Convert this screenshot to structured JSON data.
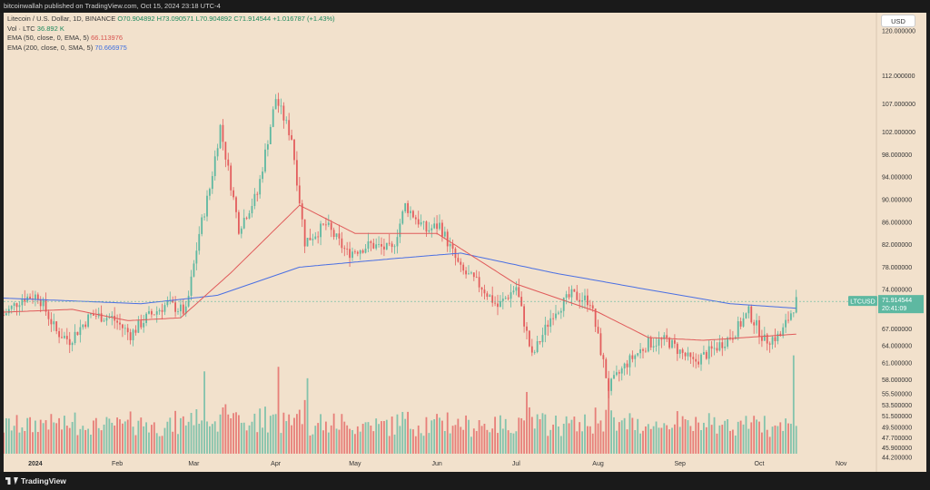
{
  "header": {
    "published": "bitcoinwallah published on TradingView.com, Oct 15, 2024 23:18 UTC-4"
  },
  "legend": {
    "title": "Litecoin / U.S. Dollar, 1D, BINANCE",
    "ohlc": "O70.904892  H73.090571  L70.904892  C71.914544  +1.016787 (+1.43%)",
    "vol_label": "Vol · LTC",
    "vol_value": "36.892 K",
    "ema50_label": "EMA (50, close, 0, EMA, 5)",
    "ema50_value": "66.113976",
    "ema200_label": "EMA (200, close, 0, SMA, 5)",
    "ema200_value": "70.666975"
  },
  "currency_button": "USD",
  "price_tag": {
    "symbol": "LTCUSD",
    "price": "71.914544",
    "countdown": "20:41:09"
  },
  "footer": {
    "brand": "TradingView"
  },
  "colors": {
    "up": "#5eb8a1",
    "down": "#e35d5d",
    "ema50": "#e05a5a",
    "ema200": "#4a6fe3",
    "bg": "#f2e1cc"
  },
  "chart_data": {
    "type": "candlestick",
    "title": "Litecoin / U.S. Dollar, 1D, BINANCE",
    "y_ticks": [
      "120.000000",
      "112.000000",
      "107.000000",
      "102.000000",
      "98.000000",
      "94.000000",
      "90.000000",
      "86.000000",
      "82.000000",
      "78.000000",
      "74.000000",
      "67.000000",
      "64.000000",
      "61.000000",
      "58.000000",
      "55.500000",
      "53.500000",
      "51.500000",
      "49.500000",
      "47.700000",
      "45.900000",
      "44.200000"
    ],
    "ylim": [
      44.2,
      120
    ],
    "x_ticks": [
      "2024",
      "Feb",
      "Mar",
      "Apr",
      "May",
      "Jun",
      "Jul",
      "Aug",
      "Sep",
      "Oct",
      "Nov"
    ],
    "x_start": "2023-12-20",
    "x_end": "2024-11-14",
    "anchors": [
      [
        "2023-12-20",
        69.5
      ],
      [
        "2023-12-27",
        72.5
      ],
      [
        "2024-01-02",
        73.0
      ],
      [
        "2024-01-09",
        66.5
      ],
      [
        "2024-01-14",
        65.0
      ],
      [
        "2024-01-22",
        69.5
      ],
      [
        "2024-01-30",
        69.0
      ],
      [
        "2024-02-06",
        66.0
      ],
      [
        "2024-02-12",
        69.0
      ],
      [
        "2024-02-20",
        71.5
      ],
      [
        "2024-02-27",
        70.0
      ],
      [
        "2024-03-03",
        84.0
      ],
      [
        "2024-03-07",
        92.0
      ],
      [
        "2024-03-11",
        103.0
      ],
      [
        "2024-03-18",
        85.0
      ],
      [
        "2024-03-25",
        91.0
      ],
      [
        "2024-04-01",
        108.0
      ],
      [
        "2024-04-07",
        101.0
      ],
      [
        "2024-04-12",
        82.5
      ],
      [
        "2024-04-20",
        85.5
      ],
      [
        "2024-04-28",
        80.5
      ],
      [
        "2024-05-07",
        82.0
      ],
      [
        "2024-05-15",
        81.0
      ],
      [
        "2024-05-20",
        89.0
      ],
      [
        "2024-05-28",
        84.5
      ],
      [
        "2024-06-02",
        85.5
      ],
      [
        "2024-06-10",
        77.5
      ],
      [
        "2024-06-18",
        74.5
      ],
      [
        "2024-06-24",
        71.0
      ],
      [
        "2024-07-01",
        74.5
      ],
      [
        "2024-07-07",
        62.0
      ],
      [
        "2024-07-15",
        70.0
      ],
      [
        "2024-07-22",
        73.0
      ],
      [
        "2024-07-29",
        72.0
      ],
      [
        "2024-08-05",
        56.5
      ],
      [
        "2024-08-12",
        61.0
      ],
      [
        "2024-08-20",
        64.5
      ],
      [
        "2024-08-27",
        65.0
      ],
      [
        "2024-09-06",
        61.0
      ],
      [
        "2024-09-14",
        63.5
      ],
      [
        "2024-09-21",
        66.0
      ],
      [
        "2024-09-27",
        70.0
      ],
      [
        "2024-10-03",
        65.0
      ],
      [
        "2024-10-09",
        65.8
      ],
      [
        "2024-10-14",
        71.0
      ],
      [
        "2024-10-15",
        71.9
      ]
    ],
    "ema50_anchors": [
      [
        "2023-12-20",
        70.0
      ],
      [
        "2024-01-15",
        70.5
      ],
      [
        "2024-02-05",
        68.5
      ],
      [
        "2024-02-25",
        69.0
      ],
      [
        "2024-03-15",
        77.0
      ],
      [
        "2024-04-10",
        89.0
      ],
      [
        "2024-05-01",
        84.0
      ],
      [
        "2024-06-01",
        84.0
      ],
      [
        "2024-07-01",
        75.0
      ],
      [
        "2024-08-01",
        70.0
      ],
      [
        "2024-08-20",
        65.5
      ],
      [
        "2024-09-10",
        65.0
      ],
      [
        "2024-10-15",
        66.1
      ]
    ],
    "ema200_anchors": [
      [
        "2023-12-20",
        72.5
      ],
      [
        "2024-02-10",
        71.5
      ],
      [
        "2024-03-10",
        73.0
      ],
      [
        "2024-04-10",
        78.0
      ],
      [
        "2024-05-15",
        79.5
      ],
      [
        "2024-06-10",
        80.5
      ],
      [
        "2024-07-15",
        77.0
      ],
      [
        "2024-08-20",
        74.0
      ],
      [
        "2024-09-20",
        71.5
      ],
      [
        "2024-10-15",
        70.7
      ]
    ],
    "volume_range": [
      0,
      250000
    ],
    "volume_spikes": [
      [
        "2024-03-05",
        180000
      ],
      [
        "2024-04-02",
        190000
      ],
      [
        "2024-04-13",
        165000
      ],
      [
        "2024-07-05",
        135000
      ],
      [
        "2024-08-05",
        160000
      ],
      [
        "2024-10-14",
        215000
      ]
    ]
  }
}
